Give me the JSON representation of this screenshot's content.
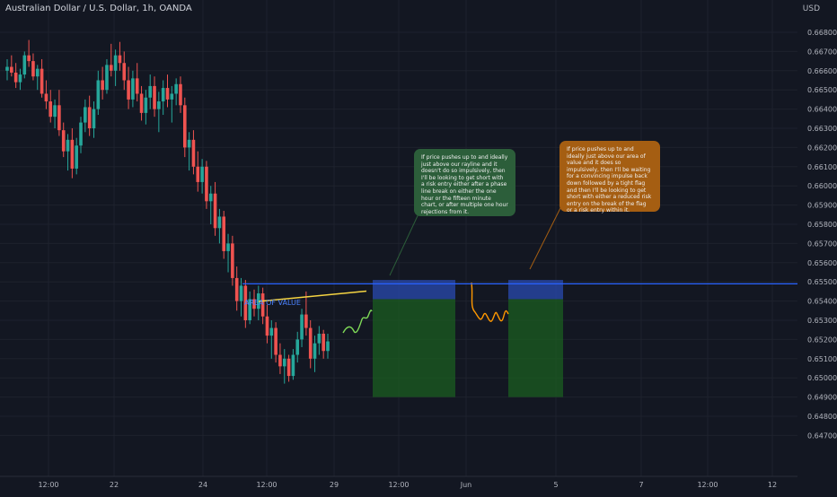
{
  "header": {
    "symbol_title": "Australian Dollar / U.S. Dollar, 1h, OANDA",
    "currency": "USD"
  },
  "annotations": {
    "area_of_value_label": "AREA OF VALUE",
    "green_note": "If price pushes up to and ideally just above our rayline and it doesn't do so impulsively, then I'll be looking to get short with a risk entry either after a phase line break on either the one hour or the fifteen minute chart, or after multiple one hour rejections from it.",
    "orange_note": "If price pushes up to and ideally just above our area of value and it does so impulsively, then I'll be waiting for a convincing impulse back down followed by a tight flag and then I'll be looking to get short with either a reduced risk entry on the break of the flag or a risk entry within it."
  },
  "colors": {
    "background": "#131722",
    "bull": "#26a69a",
    "bear": "#ef5350",
    "area_line": "#2962ff",
    "trendline": "#f5d442",
    "green_path": "#7ed957",
    "orange_path": "#ff9800",
    "stop_zone": "#2a4bb0",
    "target_zone": "#1b5e20",
    "grid": "#1e222d",
    "axis_text": "#b2b5be"
  },
  "chart_data": {
    "type": "candlestick",
    "title": "Australian Dollar / U.S. Dollar, 1h, OANDA",
    "ylabel": "USD",
    "ylim": [
      0.6472,
      0.669
    ],
    "y_ticks": [
      "0.66800",
      "0.66700",
      "0.66600",
      "0.66500",
      "0.66400",
      "0.66300",
      "0.66200",
      "0.66100",
      "0.66000",
      "0.65900",
      "0.65800",
      "0.65700",
      "0.65600",
      "0.65500",
      "0.65400",
      "0.65300",
      "0.65200",
      "0.65100",
      "0.65000",
      "0.64900",
      "0.64800",
      "0.64700"
    ],
    "x_ticks": [
      "12:00",
      "22",
      "12:00",
      "24",
      "12:00",
      "29",
      "12:00",
      "Jun",
      "5",
      "7",
      "12:00",
      "12"
    ],
    "area_of_value": 0.6549,
    "trendline": {
      "from": 0.6544,
      "to": 0.6548
    },
    "trade_zones": [
      {
        "stop_top": 0.6551,
        "entry": 0.6541,
        "target": 0.649
      },
      {
        "stop_top": 0.6551,
        "entry": 0.6541,
        "target": 0.649
      }
    ],
    "candles": [
      [
        0.666,
        0.6666,
        0.6655,
        0.6662
      ],
      [
        0.6662,
        0.6668,
        0.6657,
        0.6659
      ],
      [
        0.6659,
        0.6664,
        0.6651,
        0.6654
      ],
      [
        0.6654,
        0.6661,
        0.665,
        0.6658
      ],
      [
        0.6658,
        0.667,
        0.6656,
        0.6668
      ],
      [
        0.6668,
        0.6676,
        0.6662,
        0.6665
      ],
      [
        0.6665,
        0.6669,
        0.6655,
        0.6657
      ],
      [
        0.6657,
        0.6663,
        0.665,
        0.6661
      ],
      [
        0.6661,
        0.6666,
        0.6646,
        0.6648
      ],
      [
        0.6648,
        0.6655,
        0.664,
        0.6644
      ],
      [
        0.6644,
        0.665,
        0.6633,
        0.6636
      ],
      [
        0.6636,
        0.6645,
        0.663,
        0.6642
      ],
      [
        0.6642,
        0.665,
        0.6626,
        0.6629
      ],
      [
        0.6629,
        0.6633,
        0.6615,
        0.6618
      ],
      [
        0.6618,
        0.6627,
        0.6608,
        0.6624
      ],
      [
        0.6624,
        0.663,
        0.6604,
        0.6609
      ],
      [
        0.6609,
        0.6625,
        0.6606,
        0.6621
      ],
      [
        0.6621,
        0.6636,
        0.6617,
        0.6633
      ],
      [
        0.6633,
        0.6645,
        0.6628,
        0.6641
      ],
      [
        0.6641,
        0.6647,
        0.6626,
        0.663
      ],
      [
        0.663,
        0.6644,
        0.6625,
        0.664
      ],
      [
        0.664,
        0.666,
        0.6637,
        0.6655
      ],
      [
        0.6655,
        0.6662,
        0.6645,
        0.665
      ],
      [
        0.665,
        0.6666,
        0.6648,
        0.6663
      ],
      [
        0.6663,
        0.6674,
        0.6657,
        0.666
      ],
      [
        0.666,
        0.6671,
        0.6652,
        0.6668
      ],
      [
        0.6668,
        0.6675,
        0.666,
        0.6664
      ],
      [
        0.6664,
        0.667,
        0.665,
        0.6655
      ],
      [
        0.6655,
        0.6662,
        0.664,
        0.6645
      ],
      [
        0.6645,
        0.666,
        0.6641,
        0.6656
      ],
      [
        0.6656,
        0.6664,
        0.6644,
        0.6648
      ],
      [
        0.6648,
        0.6652,
        0.6634,
        0.6638
      ],
      [
        0.6638,
        0.665,
        0.6632,
        0.6646
      ],
      [
        0.6646,
        0.6658,
        0.664,
        0.6652
      ],
      [
        0.6652,
        0.6657,
        0.6636,
        0.664
      ],
      [
        0.664,
        0.6649,
        0.6628,
        0.6644
      ],
      [
        0.6644,
        0.6655,
        0.6637,
        0.6651
      ],
      [
        0.6651,
        0.6658,
        0.6641,
        0.6645
      ],
      [
        0.6645,
        0.6652,
        0.6633,
        0.6648
      ],
      [
        0.6648,
        0.6656,
        0.6642,
        0.6653
      ],
      [
        0.6653,
        0.6657,
        0.6638,
        0.6642
      ],
      [
        0.6642,
        0.6646,
        0.6615,
        0.662
      ],
      [
        0.662,
        0.6628,
        0.6608,
        0.6624
      ],
      [
        0.6624,
        0.6629,
        0.6606,
        0.661
      ],
      [
        0.661,
        0.6618,
        0.6597,
        0.6602
      ],
      [
        0.6602,
        0.6614,
        0.6596,
        0.661
      ],
      [
        0.661,
        0.6613,
        0.6588,
        0.6592
      ],
      [
        0.6592,
        0.66,
        0.658,
        0.6596
      ],
      [
        0.6596,
        0.6602,
        0.6574,
        0.6578
      ],
      [
        0.6578,
        0.6588,
        0.657,
        0.6584
      ],
      [
        0.6584,
        0.6587,
        0.6562,
        0.6566
      ],
      [
        0.6566,
        0.6575,
        0.6555,
        0.657
      ],
      [
        0.657,
        0.6574,
        0.6548,
        0.6552
      ],
      [
        0.6552,
        0.6558,
        0.6535,
        0.654
      ],
      [
        0.654,
        0.6552,
        0.6532,
        0.6548
      ],
      [
        0.6548,
        0.6551,
        0.6526,
        0.653
      ],
      [
        0.653,
        0.6545,
        0.6528,
        0.6541
      ],
      [
        0.6541,
        0.6546,
        0.6532,
        0.6536
      ],
      [
        0.6536,
        0.6548,
        0.653,
        0.6544
      ],
      [
        0.6544,
        0.6547,
        0.6528,
        0.6532
      ],
      [
        0.6532,
        0.6538,
        0.6518,
        0.6522
      ],
      [
        0.6522,
        0.653,
        0.651,
        0.6526
      ],
      [
        0.6526,
        0.6529,
        0.6508,
        0.6512
      ],
      [
        0.6512,
        0.6518,
        0.6502,
        0.6506
      ],
      [
        0.6506,
        0.6515,
        0.6497,
        0.651
      ],
      [
        0.651,
        0.6512,
        0.6498,
        0.6501
      ],
      [
        0.6501,
        0.6515,
        0.6499,
        0.6512
      ],
      [
        0.6512,
        0.6524,
        0.6508,
        0.652
      ],
      [
        0.652,
        0.6536,
        0.6516,
        0.6533
      ],
      [
        0.6533,
        0.6545,
        0.6522,
        0.6526
      ],
      [
        0.6526,
        0.653,
        0.6505,
        0.651
      ],
      [
        0.651,
        0.6522,
        0.6503,
        0.6518
      ],
      [
        0.6518,
        0.6527,
        0.6512,
        0.6523
      ],
      [
        0.6523,
        0.6525,
        0.651,
        0.6514
      ],
      [
        0.6514,
        0.6523,
        0.651,
        0.6519
      ]
    ]
  }
}
